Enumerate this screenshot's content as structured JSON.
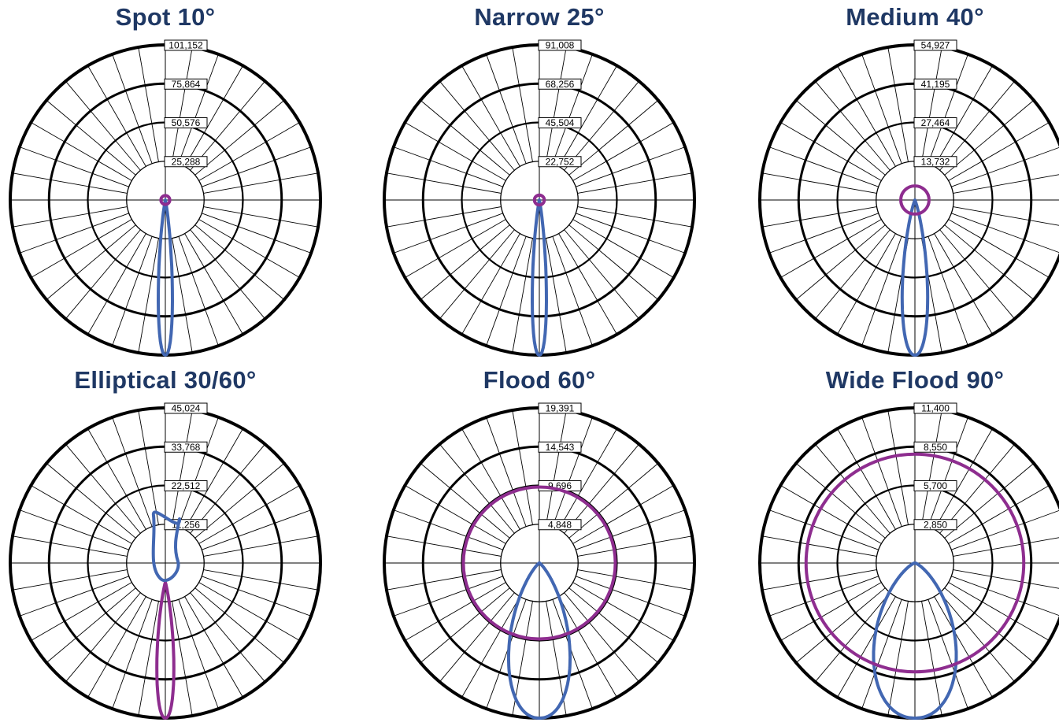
{
  "colors": {
    "title": "#1f3864",
    "vertical_plane": "#4267b2",
    "horizontal_plane": "#8e2d8f",
    "grid": "#000000"
  },
  "chart_data": [
    {
      "type": "polar",
      "title": "Spot 10°",
      "ring_labels": [
        "101,152",
        "75,864",
        "50,576",
        "25,288"
      ],
      "rmax": 101152,
      "series": [
        {
          "color": "#4267b2",
          "shape": "beam",
          "half_angle_deg": 5,
          "peak": 101152
        },
        {
          "color": "#8e2d8f",
          "shape": "circle",
          "value": 2900
        }
      ]
    },
    {
      "type": "polar",
      "title": "Narrow 25°",
      "ring_labels": [
        "91,008",
        "68,256",
        "45,504",
        "22,752"
      ],
      "rmax": 91008,
      "series": [
        {
          "color": "#4267b2",
          "shape": "beam",
          "half_angle_deg": 5,
          "peak": 91008
        },
        {
          "color": "#8e2d8f",
          "shape": "circle",
          "value": 2900
        }
      ]
    },
    {
      "type": "polar",
      "title": "Medium 40°",
      "ring_labels": [
        "54,927",
        "41,195",
        "27,464",
        "13,732"
      ],
      "rmax": 54927,
      "series": [
        {
          "color": "#4267b2",
          "shape": "beam",
          "half_angle_deg": 9,
          "peak": 54927
        },
        {
          "color": "#8e2d8f",
          "shape": "circle",
          "value": 5000
        }
      ]
    },
    {
      "type": "polar",
      "title": "Elliptical 30/60°",
      "ring_labels": [
        "45,024",
        "33,768",
        "22,512",
        "11,256"
      ],
      "rmax": 45024,
      "series": [
        {
          "color": "#8e2d8f",
          "shape": "beam",
          "half_angle_deg": 6,
          "peak": 45024,
          "offset": 5600
        },
        {
          "color": "#4267b2",
          "shape": "upper-lobe",
          "peak": 8200
        }
      ]
    },
    {
      "type": "polar",
      "title": "Flood 60°",
      "ring_labels": [
        "19,391",
        "14,543",
        "9,696",
        "4,848"
      ],
      "rmax": 19391,
      "series": [
        {
          "color": "#4267b2",
          "shape": "beam",
          "half_angle_deg": 22,
          "peak": 19391
        },
        {
          "color": "#8e2d8f",
          "shape": "circle",
          "value": 9500
        }
      ]
    },
    {
      "type": "polar",
      "title": "Wide Flood 90°",
      "ring_labels": [
        "11,400",
        "8,550",
        "5,700",
        "2,850"
      ],
      "rmax": 11400,
      "series": [
        {
          "color": "#4267b2",
          "shape": "beam",
          "half_angle_deg": 30,
          "peak": 11400
        },
        {
          "color": "#8e2d8f",
          "shape": "circle",
          "value": 8000
        }
      ]
    }
  ]
}
